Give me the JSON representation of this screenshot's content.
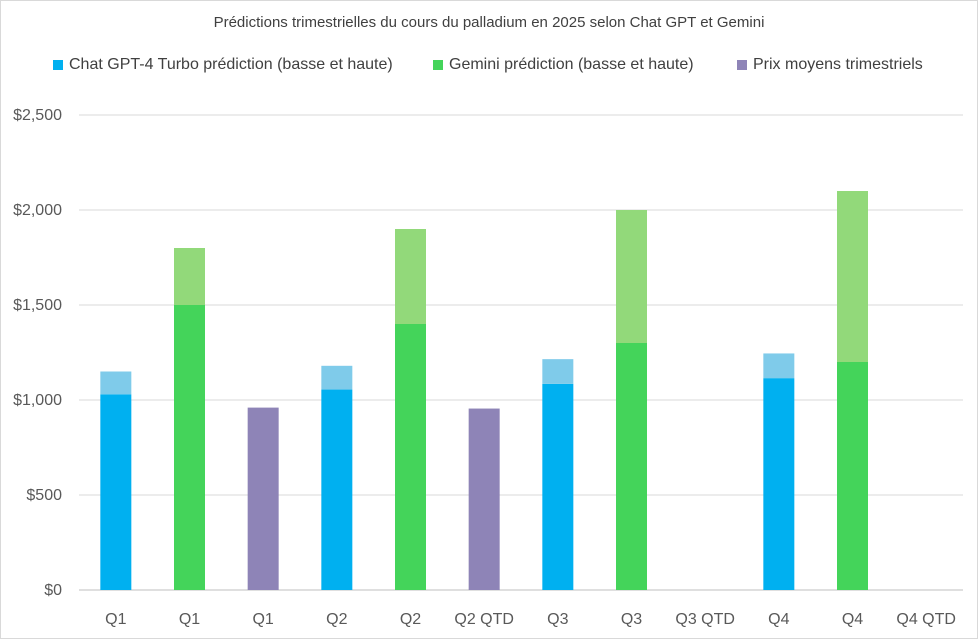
{
  "chart_data": {
    "type": "bar",
    "title": "Prédictions trimestrielles du cours du palladium en 2025 selon Chat GPT et Gemini",
    "xlabel": "",
    "ylabel": "",
    "ylim": [
      0,
      2500
    ],
    "y_ticks": [
      0,
      500,
      1000,
      1500,
      2000,
      2500
    ],
    "y_tick_labels": [
      "$0",
      "$500",
      "$1,000",
      "$1,500",
      "$2,000",
      "$2,500"
    ],
    "grid": true,
    "legend_position": "top",
    "categories": [
      "Q1",
      "Q1",
      "Q1",
      "Q2",
      "Q2",
      "Q2 QTD",
      "Q3",
      "Q3",
      "Q3 QTD",
      "Q4",
      "Q4",
      "Q4 QTD"
    ],
    "series": [
      {
        "name": "Chat GPT-4 Turbo prédiction (basse et haute)",
        "color": "#00b0f0",
        "high_color": "#7fcbea",
        "points": [
          {
            "index": 0,
            "low": 1030,
            "high": 1150
          },
          {
            "index": 3,
            "low": 1055,
            "high": 1180
          },
          {
            "index": 6,
            "low": 1085,
            "high": 1215
          },
          {
            "index": 9,
            "low": 1115,
            "high": 1245
          }
        ]
      },
      {
        "name": "Gemini prédiction (basse et haute)",
        "color": "#44d45a",
        "high_color": "#92d97a",
        "points": [
          {
            "index": 1,
            "low": 1500,
            "high": 1800
          },
          {
            "index": 4,
            "low": 1400,
            "high": 1900
          },
          {
            "index": 7,
            "low": 1300,
            "high": 2000
          },
          {
            "index": 10,
            "low": 1200,
            "high": 2100
          }
        ]
      },
      {
        "name": "Prix moyens trimestriels",
        "color": "#8e84b7",
        "points": [
          {
            "index": 2,
            "value": 960
          },
          {
            "index": 5,
            "value": 955
          }
        ]
      }
    ]
  }
}
